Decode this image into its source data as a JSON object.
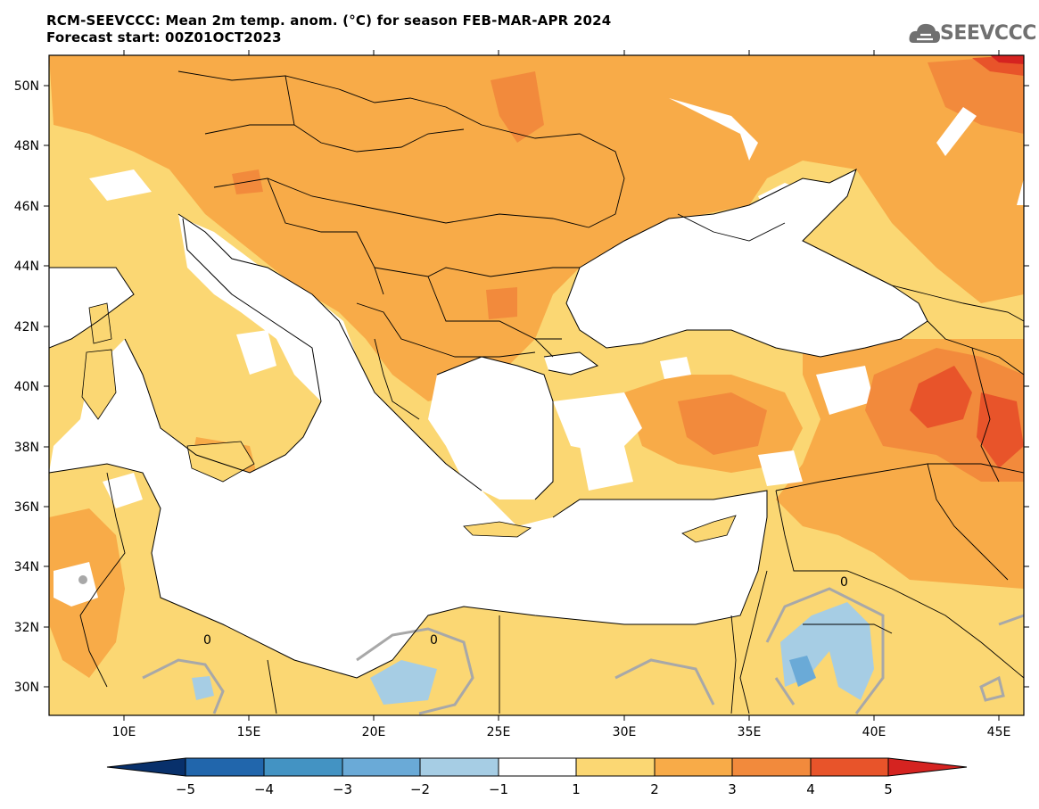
{
  "header": {
    "title_line1": "RCM-SEEVCCC: Mean 2m temp. anom. (°C) for season FEB-MAR-APR 2024",
    "title_line2": "Forecast start: 00Z01OCT2023",
    "logo_text": "SEEVCCC"
  },
  "map": {
    "lat_labels": [
      "50N",
      "48N",
      "46N",
      "44N",
      "42N",
      "40N",
      "38N",
      "36N",
      "34N",
      "32N",
      "30N"
    ],
    "lon_labels": [
      "10E",
      "15E",
      "20E",
      "25E",
      "30E",
      "35E",
      "40E",
      "45E"
    ],
    "contour_label": "0",
    "colors": {
      "water": "#ffffff",
      "anom_1_2": "#fbd773",
      "anom_2_3": "#f8ab48",
      "anom_3_4": "#f28a3c",
      "anom_4_5": "#e8542a",
      "anom_gt5": "#d52320",
      "anom_m1_m2": "#a6cde4",
      "anom_m2_m3": "#6aaad7",
      "zero_contour": "#a8a8a8",
      "border": "#000000"
    }
  },
  "colorbar": {
    "labels": [
      "−5",
      "−4",
      "−3",
      "−2",
      "−1",
      "1",
      "2",
      "3",
      "4",
      "5"
    ],
    "colors": [
      "#08306b",
      "#2166ac",
      "#4393c3",
      "#6aaad7",
      "#a6cde4",
      "#ffffff",
      "#fbd773",
      "#f8ab48",
      "#f28a3c",
      "#e8542a",
      "#d52320"
    ]
  }
}
